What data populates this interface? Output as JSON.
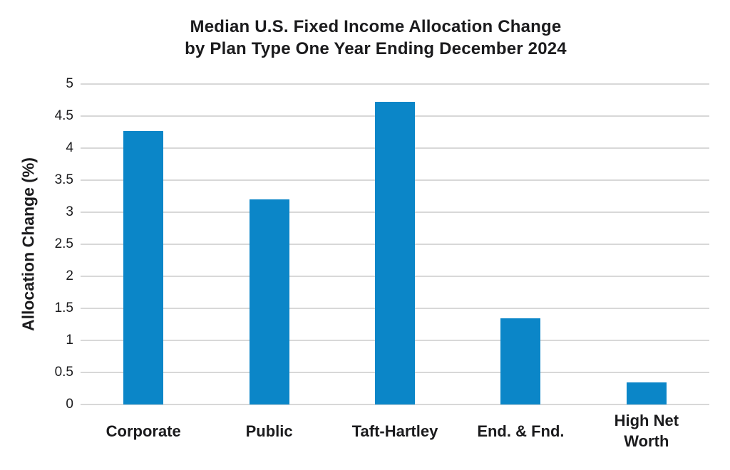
{
  "title": {
    "line1": "Median U.S. Fixed Income Allocation Change",
    "line2": "by Plan Type One Year Ending December 2024"
  },
  "chart_data": {
    "type": "bar",
    "title": "Median U.S. Fixed Income Allocation Change by Plan Type One Year Ending December 2024",
    "categories": [
      "Corporate",
      "Public",
      "Taft-Hartley",
      "End. & Fnd.",
      "High Net Worth"
    ],
    "values": [
      4.27,
      3.2,
      4.72,
      1.35,
      0.35
    ],
    "xlabel": "",
    "ylabel": "Allocation Change (%)",
    "ylim": [
      0,
      5
    ],
    "ytick_step": 0.5,
    "ytick_labels": [
      "0",
      "0.5",
      "1",
      "1.5",
      "2",
      "2.5",
      "3",
      "3.5",
      "4",
      "4.5",
      "5"
    ],
    "grid": "horizontal",
    "legend_position": "none"
  },
  "colors": {
    "bar": "#0b86c8",
    "gridline": "#d8d8d8",
    "text": "#1b1b1d",
    "background": "#ffffff"
  }
}
